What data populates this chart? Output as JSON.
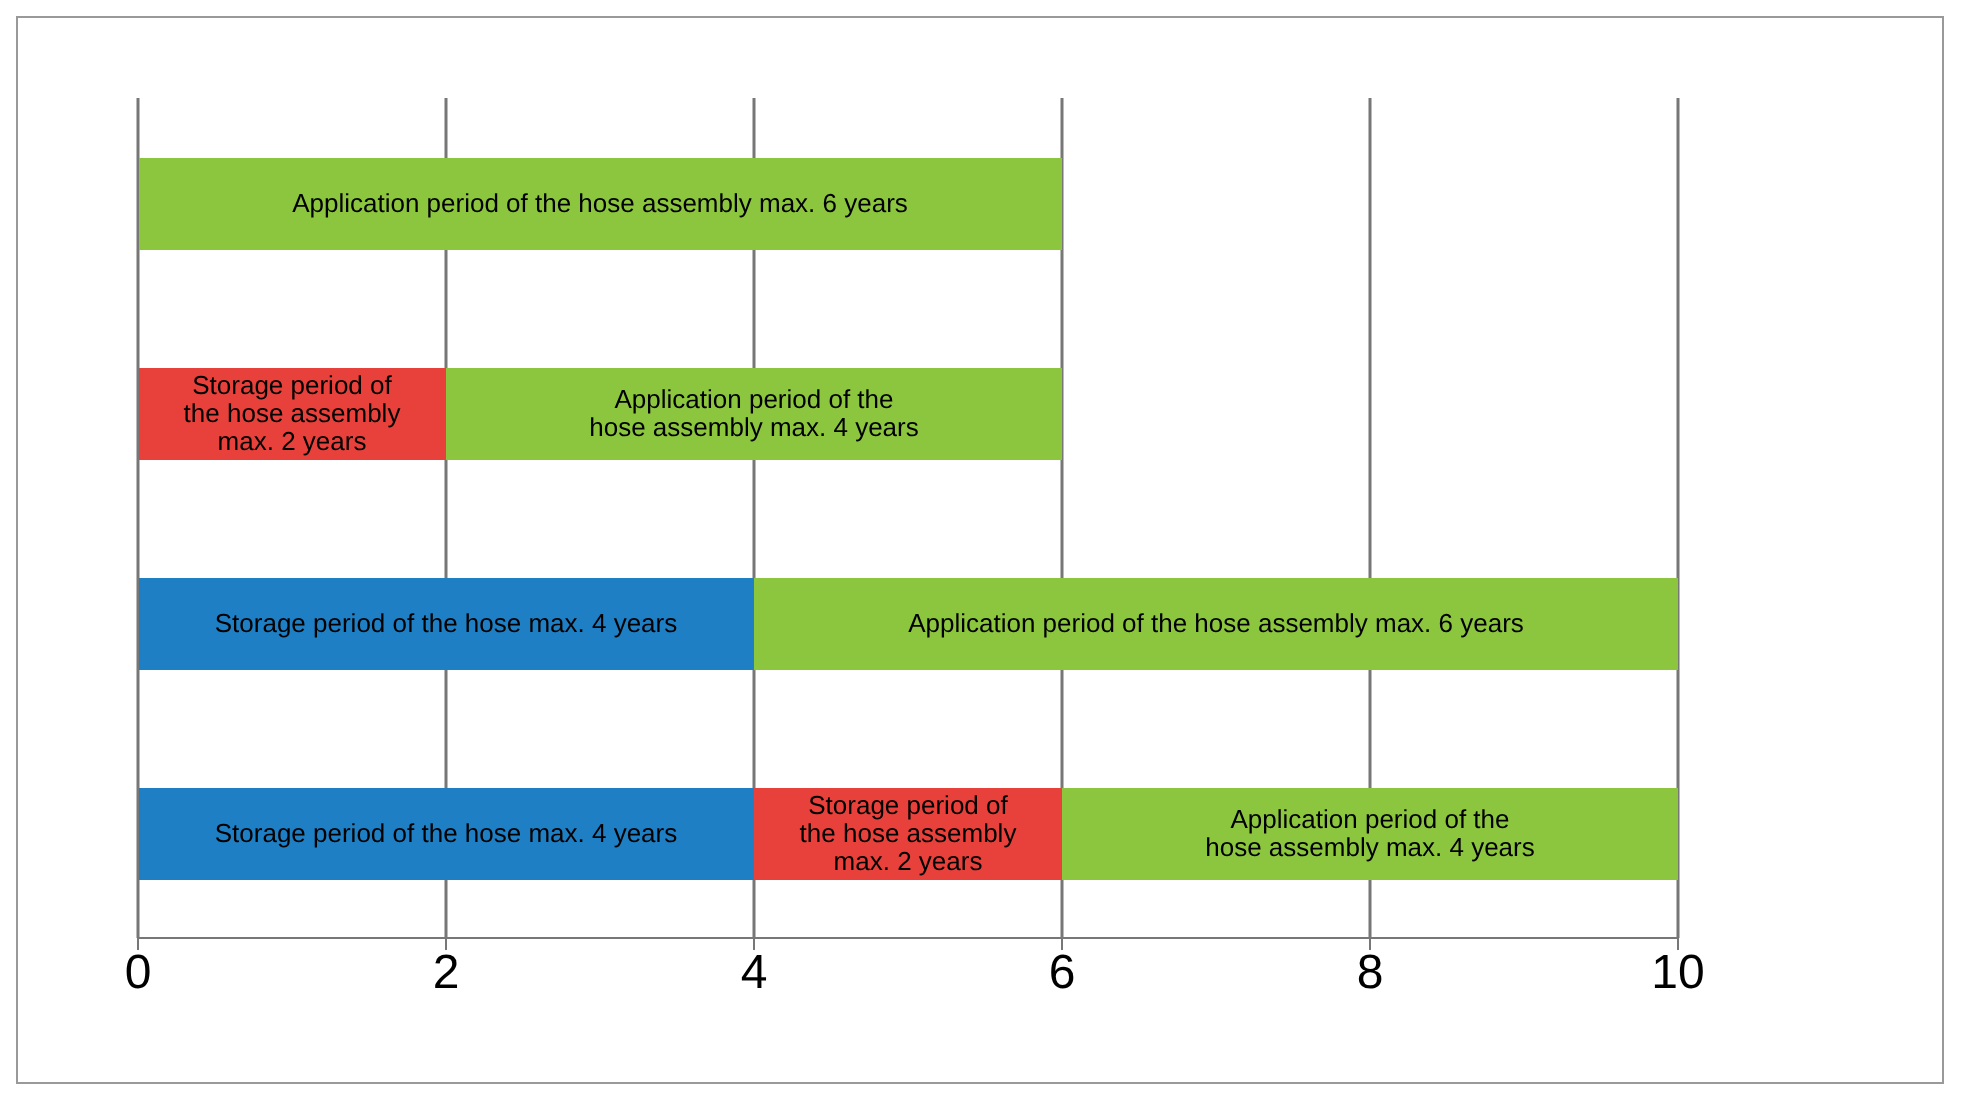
{
  "chart_data": {
    "type": "bar",
    "orientation": "horizontal",
    "stacked": true,
    "categories": [
      null,
      null,
      null,
      null
    ],
    "series": [
      {
        "color": "#1f7fc4",
        "values": [
          null,
          null,
          4,
          4
        ],
        "value_labels": [
          null,
          null,
          "Storage period of the hose max. 4 years",
          "Storage period of the hose max. 4 years"
        ]
      },
      {
        "color": "#e8403a",
        "values": [
          null,
          2,
          null,
          2
        ],
        "value_labels": [
          null,
          "Storage period of the hose assembly max. 2 years",
          null,
          "Storage period of the hose assembly max. 2 years"
        ]
      },
      {
        "color": "#8cc63f",
        "values": [
          6,
          4,
          6,
          4
        ],
        "value_labels": [
          "Application period of the hose assembly max. 6 years",
          "Application period of the hose assembly max. 4 years",
          "Application period of the hose assembly max. 6 years",
          "Application period of the hose assembly max. 4 years"
        ]
      }
    ],
    "xlim": [
      0,
      10
    ],
    "xticks": [
      0,
      2,
      4,
      6,
      8,
      10
    ],
    "grid": "x",
    "tick_labels": "x",
    "legend": false
  }
}
